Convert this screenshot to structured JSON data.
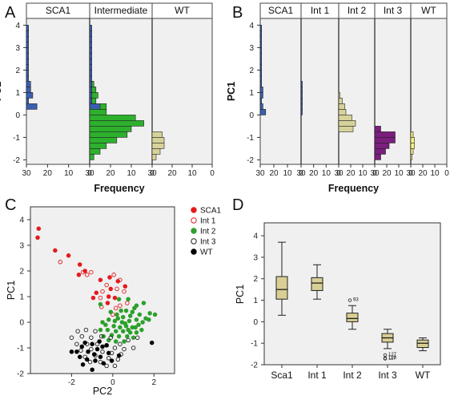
{
  "colors": {
    "SCA1": "#e41a1c",
    "Int 1": "#e41a1c",
    "Int 2": "#2ca02c",
    "Int 3": "#222222",
    "WT": "#000000",
    "bar_blue": "#3a5fb0",
    "bar_green": "#2db12d",
    "bar_khaki": "#d7d29a",
    "bar_purple": "#7b1e7e",
    "bar_yellow": "#f5f07a",
    "plot_bg": "#f0f0f0",
    "box_fill": "#d9cf95"
  },
  "panels": {
    "A": "A",
    "B": "B",
    "C": "C",
    "D": "D"
  },
  "chart_data": [
    {
      "id": "A",
      "type": "bar",
      "orientation": "horizontal",
      "ylabel": "PC1",
      "xlabel": "Frequency",
      "ylim": [
        -2.2,
        4.3
      ],
      "xlim_panel": [
        30,
        0
      ],
      "yticks": [
        "-2",
        "-1",
        "0",
        "1",
        "2",
        "3",
        "4"
      ],
      "xticks": [
        "30",
        "20",
        "10",
        "0"
      ],
      "bins": [
        3.875,
        3.625,
        3.375,
        3.125,
        2.875,
        2.625,
        2.375,
        2.125,
        1.875,
        1.625,
        1.375,
        1.125,
        0.875,
        0.625,
        0.375,
        0.125,
        -0.125,
        -0.375,
        -0.625,
        -0.875,
        -1.125,
        -1.375,
        -1.625,
        -1.875
      ],
      "bin_width": 0.25,
      "groups": [
        {
          "name": "SCA1",
          "segments": [
            {
              "color_key": "bar_blue",
              "values": [
                1,
                1,
                1,
                1,
                1,
                1,
                1,
                1,
                1,
                1,
                2,
                2,
                3,
                1,
                5,
                0,
                0,
                0,
                0,
                0,
                0,
                0,
                0,
                0
              ]
            }
          ]
        },
        {
          "name": "Intermediate",
          "segments": [
            {
              "color_key": "bar_blue",
              "values": [
                1,
                1,
                1,
                1,
                1,
                1,
                1,
                1,
                1,
                1,
                1,
                1,
                1,
                1,
                5,
                0,
                0,
                0,
                0,
                0,
                0,
                0,
                0,
                0
              ]
            },
            {
              "color_key": "bar_green",
              "values": [
                0,
                0,
                0,
                0,
                0,
                0,
                0,
                0,
                0,
                0,
                1,
                2,
                3,
                2,
                3,
                8,
                22,
                26,
                20,
                18,
                13,
                8,
                5,
                2
              ]
            }
          ]
        },
        {
          "name": "WT",
          "segments": [
            {
              "color_key": "bar_khaki",
              "values": [
                0,
                0,
                0,
                0,
                0,
                0,
                0,
                0,
                0,
                0,
                0,
                0,
                0,
                0,
                0,
                0,
                0,
                0,
                0,
                5,
                6,
                6,
                4,
                2
              ]
            }
          ]
        }
      ]
    },
    {
      "id": "B",
      "type": "bar",
      "orientation": "horizontal",
      "ylabel": "PC1",
      "xlabel": "Frequency",
      "ylim": [
        -2.2,
        4.3
      ],
      "xlim_panel": [
        30,
        0
      ],
      "yticks": [
        "-2",
        "-1",
        "0",
        "1",
        "2",
        "3",
        "4"
      ],
      "xticks": [
        "30",
        "20",
        "10",
        "0"
      ],
      "bins": [
        3.875,
        3.625,
        3.375,
        3.125,
        2.875,
        2.625,
        2.375,
        2.125,
        1.875,
        1.625,
        1.375,
        1.125,
        0.875,
        0.625,
        0.375,
        0.125,
        -0.125,
        -0.375,
        -0.625,
        -0.875,
        -1.125,
        -1.375,
        -1.625,
        -1.875
      ],
      "bin_width": 0.25,
      "groups": [
        {
          "name": "SCA1",
          "segments": [
            {
              "color_key": "bar_blue",
              "values": [
                1,
                1,
                1,
                1,
                1,
                1,
                1,
                1,
                1,
                1,
                1,
                2,
                2,
                1,
                2,
                4,
                0,
                0,
                0,
                0,
                0,
                0,
                0,
                0
              ]
            }
          ]
        },
        {
          "name": "Int 1",
          "segments": [
            {
              "color_key": "bar_blue",
              "values": [
                0,
                0,
                0,
                0,
                0,
                0,
                0,
                0,
                0,
                0,
                1,
                1,
                1,
                1,
                1,
                1,
                0,
                0,
                0,
                0,
                0,
                0,
                0,
                0
              ]
            }
          ]
        },
        {
          "name": "Int 2",
          "segments": [
            {
              "color_key": "bar_khaki",
              "values": [
                0,
                0,
                0,
                0,
                0,
                0,
                0,
                0,
                0,
                0,
                0,
                0,
                1,
                3,
                5,
                6,
                11,
                14,
                12,
                0,
                0,
                0,
                0,
                0
              ]
            }
          ]
        },
        {
          "name": "Int 3",
          "segments": [
            {
              "color_key": "bar_purple",
              "values": [
                0,
                0,
                0,
                0,
                0,
                0,
                0,
                0,
                0,
                0,
                0,
                0,
                0,
                0,
                0,
                0,
                0,
                0,
                5,
                17,
                17,
                12,
                9,
                5
              ]
            }
          ]
        },
        {
          "name": "WT",
          "segments": [
            {
              "color_key": "bar_yellow",
              "values": [
                0,
                0,
                0,
                0,
                0,
                0,
                0,
                0,
                0,
                0,
                0,
                0,
                0,
                0,
                0,
                0,
                0,
                0,
                0,
                2,
                3,
                3,
                2,
                1
              ]
            }
          ]
        }
      ]
    },
    {
      "id": "C",
      "type": "scatter",
      "xlabel": "PC2",
      "ylabel": "PC1",
      "xlim": [
        -4,
        3
      ],
      "ylim": [
        -2,
        4.5
      ],
      "xticks": [
        "-2",
        "0",
        "2"
      ],
      "yticks": [
        "-2",
        "-1",
        "0",
        "1",
        "2",
        "3",
        "4"
      ],
      "legend": [
        "SCA1",
        "Int 1",
        "Int 2",
        "Int 3",
        "WT"
      ],
      "series": [
        {
          "name": "SCA1",
          "filled": true,
          "points": [
            [
              -3.6,
              3.65
            ],
            [
              -3.65,
              3.3
            ],
            [
              -2.8,
              2.8
            ],
            [
              -2.15,
              2.6
            ],
            [
              -1.6,
              2.25
            ],
            [
              -0.6,
              1.65
            ],
            [
              -0.15,
              1.75
            ],
            [
              -0.1,
              1.3
            ],
            [
              0.6,
              1.4
            ],
            [
              -0.2,
              1.0
            ],
            [
              -0.8,
              1.15
            ],
            [
              -0.95,
              0.95
            ],
            [
              0.1,
              0.95
            ],
            [
              -1.35,
              2.0
            ],
            [
              -1.65,
              1.85
            ],
            [
              0.25,
              1.6
            ],
            [
              -0.25,
              0.75
            ]
          ]
        },
        {
          "name": "Int 1",
          "filled": false,
          "points": [
            [
              -2.55,
              2.35
            ],
            [
              -1.45,
              1.95
            ],
            [
              -1.25,
              1.85
            ],
            [
              -1.05,
              1.95
            ],
            [
              0.05,
              1.85
            ],
            [
              0.35,
              1.65
            ],
            [
              -0.3,
              1.45
            ],
            [
              0.2,
              1.3
            ],
            [
              -0.5,
              1.2
            ],
            [
              -0.6,
              0.95
            ],
            [
              0.7,
              0.75
            ],
            [
              -0.55,
              0.6
            ],
            [
              0.15,
              0.55
            ],
            [
              0.0,
              0.3
            ],
            [
              0.35,
              0.65
            ],
            [
              0.55,
              1.2
            ]
          ]
        },
        {
          "name": "Int 2",
          "filled": true,
          "points": [
            [
              -0.6,
              0.7
            ],
            [
              0.3,
              0.9
            ],
            [
              0.75,
              0.9
            ],
            [
              1.15,
              0.65
            ],
            [
              1.5,
              0.75
            ],
            [
              0.65,
              0.45
            ],
            [
              1.05,
              0.55
            ],
            [
              1.8,
              0.35
            ],
            [
              2.05,
              0.3
            ],
            [
              0.2,
              0.3
            ],
            [
              0.5,
              0.2
            ],
            [
              0.85,
              0.25
            ],
            [
              1.3,
              0.3
            ],
            [
              1.6,
              0.15
            ],
            [
              -0.2,
              0.1
            ],
            [
              0.1,
              0.05
            ],
            [
              0.45,
              0.0
            ],
            [
              0.8,
              0.05
            ],
            [
              1.15,
              0.1
            ],
            [
              1.45,
              0.0
            ],
            [
              -0.5,
              0.0
            ],
            [
              0.05,
              -0.15
            ],
            [
              0.35,
              -0.2
            ],
            [
              0.65,
              -0.15
            ],
            [
              0.95,
              -0.2
            ],
            [
              1.25,
              -0.1
            ],
            [
              -0.25,
              -0.3
            ],
            [
              0.15,
              -0.35
            ],
            [
              0.5,
              -0.35
            ],
            [
              0.85,
              -0.4
            ],
            [
              1.15,
              -0.4
            ],
            [
              -0.45,
              -0.55
            ],
            [
              -0.05,
              -0.5
            ],
            [
              0.3,
              -0.55
            ],
            [
              0.7,
              -0.55
            ],
            [
              1.0,
              -0.6
            ],
            [
              -0.2,
              -0.7
            ],
            [
              0.15,
              -0.75
            ],
            [
              0.55,
              -0.75
            ],
            [
              0.4,
              0.45
            ],
            [
              -0.1,
              0.4
            ],
            [
              0.95,
              0.4
            ],
            [
              1.75,
              0.1
            ],
            [
              -0.35,
              -0.1
            ],
            [
              0.6,
              -0.05
            ],
            [
              1.4,
              -0.3
            ],
            [
              -0.6,
              -0.3
            ],
            [
              0.25,
              0.15
            ],
            [
              1.1,
              -0.2
            ],
            [
              0.75,
              -0.3
            ]
          ]
        },
        {
          "name": "Int 3",
          "filled": false,
          "points": [
            [
              -1.7,
              -0.35
            ],
            [
              -1.3,
              -0.3
            ],
            [
              -0.85,
              -0.35
            ],
            [
              -2.0,
              -0.6
            ],
            [
              -1.5,
              -0.55
            ],
            [
              -1.05,
              -0.6
            ],
            [
              -0.55,
              -0.55
            ],
            [
              -0.1,
              -0.6
            ],
            [
              0.35,
              -0.85
            ],
            [
              0.75,
              -0.7
            ],
            [
              1.2,
              -0.6
            ],
            [
              -1.75,
              -0.85
            ],
            [
              -1.25,
              -0.85
            ],
            [
              -0.75,
              -0.85
            ],
            [
              -0.3,
              -0.9
            ],
            [
              0.1,
              -1.0
            ],
            [
              0.55,
              -1.05
            ],
            [
              1.0,
              -1.0
            ],
            [
              -1.55,
              -1.1
            ],
            [
              -1.05,
              -1.05
            ],
            [
              -0.5,
              -1.15
            ],
            [
              -0.05,
              -1.2
            ],
            [
              0.4,
              -1.25
            ],
            [
              -1.35,
              -1.35
            ],
            [
              -0.85,
              -1.3
            ],
            [
              -0.2,
              -1.4
            ],
            [
              0.25,
              -1.45
            ],
            [
              -1.1,
              -1.55
            ],
            [
              -0.6,
              -1.55
            ],
            [
              -0.3,
              -1.7
            ],
            [
              0.1,
              -1.7
            ]
          ]
        },
        {
          "name": "WT",
          "filled": true,
          "points": [
            [
              -2.0,
              -1.15
            ],
            [
              -1.75,
              -1.15
            ],
            [
              -1.5,
              -0.95
            ],
            [
              -1.35,
              -0.8
            ],
            [
              -1.2,
              -1.15
            ],
            [
              -1.0,
              -0.85
            ],
            [
              -0.9,
              -1.25
            ],
            [
              -0.75,
              -1.05
            ],
            [
              -0.65,
              -0.75
            ],
            [
              -0.5,
              -0.95
            ],
            [
              -0.3,
              -0.9
            ],
            [
              -1.6,
              -1.35
            ],
            [
              -1.25,
              -1.45
            ],
            [
              -0.85,
              -1.5
            ],
            [
              -0.6,
              -1.35
            ],
            [
              -0.45,
              -1.6
            ],
            [
              -1.45,
              -1.65
            ],
            [
              -1.0,
              -1.85
            ],
            [
              -0.2,
              -1.2
            ],
            [
              1.9,
              -0.8
            ],
            [
              0.3,
              -1.3
            ],
            [
              -0.05,
              -1.5
            ]
          ]
        }
      ]
    },
    {
      "id": "D",
      "type": "box",
      "ylabel": "PC1",
      "ylim": [
        -2,
        4.6
      ],
      "yticks": [
        "4",
        "3",
        "2",
        "1",
        "0",
        "-1",
        "-2"
      ],
      "categories": [
        "Sca1",
        "Int 1",
        "Int 2",
        "Int 3",
        "WT"
      ],
      "boxes": [
        {
          "min": 0.3,
          "q1": 1.05,
          "median": 1.5,
          "q3": 2.1,
          "max": 3.7
        },
        {
          "min": 1.05,
          "q1": 1.45,
          "median": 1.8,
          "q3": 2.05,
          "max": 2.65
        },
        {
          "min": -0.35,
          "q1": 0.0,
          "median": 0.15,
          "q3": 0.4,
          "max": 0.75
        },
        {
          "min": -1.25,
          "q1": -0.95,
          "median": -0.75,
          "q3": -0.55,
          "max": -0.35
        },
        {
          "min": -1.35,
          "q1": -1.2,
          "median": -1.0,
          "q3": -0.85,
          "max": -0.75
        }
      ],
      "outliers": [
        {
          "box": 2,
          "y": 1.0,
          "label": "93"
        },
        {
          "box": 3,
          "y": -1.55,
          "label": "127"
        },
        {
          "box": 3,
          "y": -1.7,
          "label": "120"
        },
        {
          "box": 3,
          "y": -1.72,
          "label": "117"
        }
      ]
    }
  ]
}
